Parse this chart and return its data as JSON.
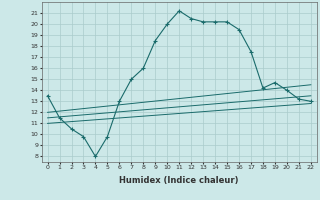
{
  "xlabel": "Humidex (Indice chaleur)",
  "xlim": [
    -0.5,
    22.5
  ],
  "ylim": [
    7.5,
    22.0
  ],
  "yticks": [
    8,
    9,
    10,
    11,
    12,
    13,
    14,
    15,
    16,
    17,
    18,
    19,
    20,
    21
  ],
  "xticks": [
    0,
    1,
    2,
    3,
    4,
    5,
    6,
    7,
    8,
    9,
    10,
    11,
    12,
    13,
    14,
    15,
    16,
    17,
    18,
    19,
    20,
    21,
    22
  ],
  "bg_color": "#cce8e8",
  "grid_color": "#aacccc",
  "line_color": "#1a6b6b",
  "line1_x": [
    0,
    1,
    2,
    3,
    4,
    5,
    6,
    7,
    8,
    9,
    10,
    11,
    12,
    13,
    14,
    15,
    16,
    17,
    18,
    19,
    20,
    21,
    22
  ],
  "line1_y": [
    13.5,
    11.5,
    10.5,
    9.8,
    8.0,
    9.8,
    13.0,
    15.0,
    16.0,
    18.5,
    20.0,
    21.2,
    20.5,
    20.2,
    20.2,
    20.2,
    19.5,
    17.5,
    14.2,
    14.7,
    14.0,
    13.2,
    13.0
  ],
  "line2_x": [
    0,
    22
  ],
  "line2_y": [
    11.0,
    12.8
  ],
  "line3_x": [
    0,
    22
  ],
  "line3_y": [
    11.5,
    13.5
  ],
  "line4_x": [
    0,
    22
  ],
  "line4_y": [
    12.0,
    14.5
  ],
  "font_color": "#333333",
  "tick_fontsize": 4.5,
  "xlabel_fontsize": 6
}
